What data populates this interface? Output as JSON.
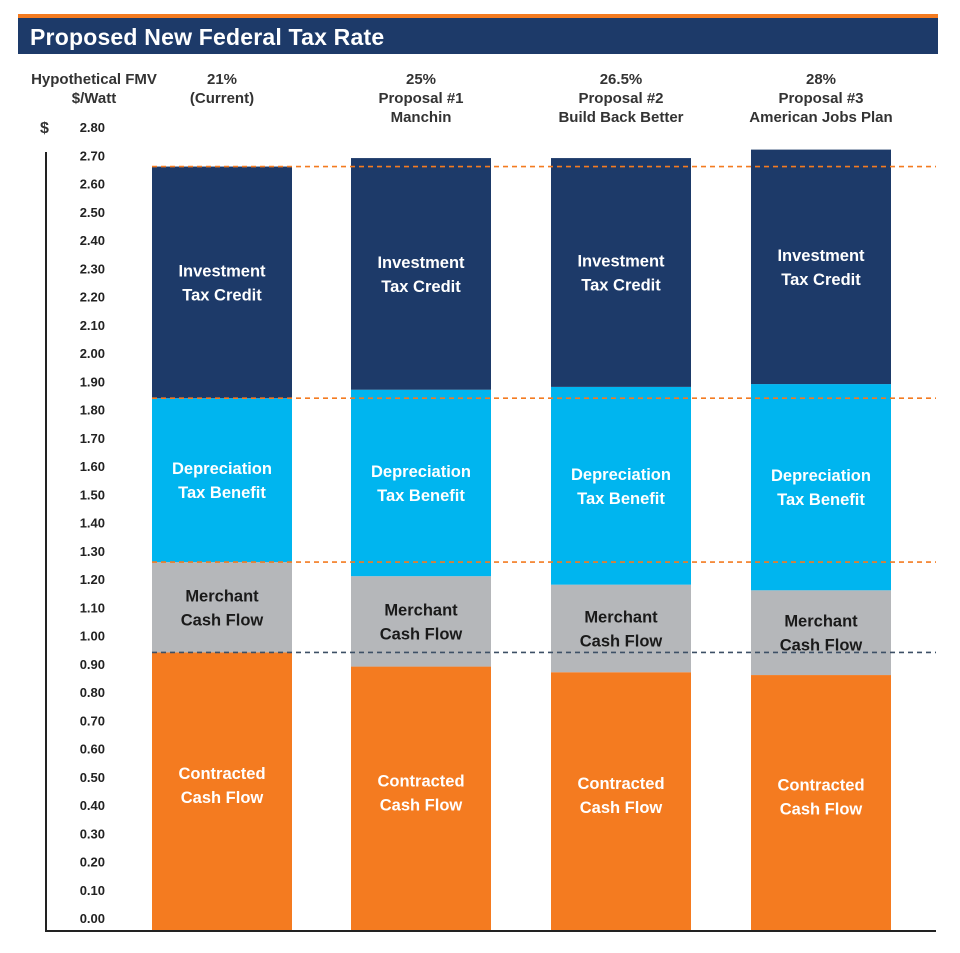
{
  "chart_data": {
    "type": "bar",
    "stacked": true,
    "title": "Proposed New Federal Tax Rate",
    "ylabel": "Hypothetical FMV $/Watt",
    "yunit": "$",
    "ylim": [
      0,
      2.8
    ],
    "yticks": [
      "0.00",
      "0.10",
      "0.20",
      "0.30",
      "0.40",
      "0.50",
      "0.60",
      "0.70",
      "0.80",
      "0.90",
      "1.00",
      "1.10",
      "1.20",
      "1.30",
      "1.40",
      "1.50",
      "1.60",
      "1.70",
      "1.80",
      "1.90",
      "2.00",
      "2.10",
      "2.20",
      "2.30",
      "2.40",
      "2.50",
      "2.60",
      "2.70",
      "2.80"
    ],
    "categories": [
      {
        "lines": [
          "21%",
          "(Current)"
        ]
      },
      {
        "lines": [
          "25%",
          "Proposal #1",
          "Manchin"
        ]
      },
      {
        "lines": [
          "26.5%",
          "Proposal #2",
          "Build Back Better"
        ]
      },
      {
        "lines": [
          "28%",
          "Proposal #3",
          "American Jobs Plan"
        ]
      }
    ],
    "series": [
      {
        "name": "Contracted Cash Flow",
        "label_lines": [
          "Contracted",
          "Cash Flow"
        ],
        "color": "#f47b20",
        "text_color": "#ffffff",
        "values": [
          0.94,
          0.89,
          0.87,
          0.86
        ]
      },
      {
        "name": "Merchant Cash Flow",
        "label_lines": [
          "Merchant",
          "Cash Flow"
        ],
        "color": "#b5b7ba",
        "text_color": "#1a1a1a",
        "values": [
          0.32,
          0.32,
          0.31,
          0.3
        ]
      },
      {
        "name": "Depreciation Tax Benefit",
        "label_lines": [
          "Depreciation",
          "Tax Benefit"
        ],
        "color": "#00b5ef",
        "text_color": "#ffffff",
        "values": [
          0.58,
          0.66,
          0.7,
          0.73
        ]
      },
      {
        "name": "Investment Tax Credit",
        "label_lines": [
          "Investment",
          "Tax Credit"
        ],
        "color": "#1d3a69",
        "text_color": "#ffffff",
        "values": [
          0.82,
          0.82,
          0.81,
          0.83
        ]
      }
    ],
    "reference_lines": [
      {
        "value": 2.66,
        "color": "#f47b20"
      },
      {
        "value": 1.84,
        "color": "#f47b20"
      },
      {
        "value": 1.26,
        "color": "#f47b20"
      },
      {
        "value": 0.94,
        "color": "#3d5066"
      }
    ]
  }
}
